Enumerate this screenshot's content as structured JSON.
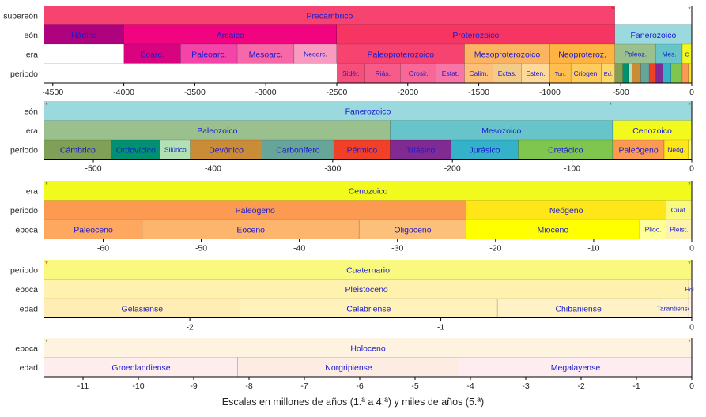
{
  "caption": "Escalas en millones de años (1.ª a 4.ª) y miles de años (5.ª)",
  "panels": [
    {
      "id": "precambrian-to-present",
      "range": [
        -4560,
        0
      ],
      "rows": [
        {
          "label": "supereón",
          "segments": [
            {
              "name": "Precámbrico",
              "start": -4560,
              "end": -541,
              "color": "#F74370"
            },
            {
              "name": "",
              "start": -541,
              "end": 0,
              "color": "#FFFFFF"
            }
          ]
        },
        {
          "label": "eón",
          "segments": [
            {
              "name": "Hádico",
              "start": -4560,
              "end": -4000,
              "color": "#AE027E"
            },
            {
              "name": "Arcaico",
              "start": -4000,
              "end": -2500,
              "color": "#F0047F"
            },
            {
              "name": "Proterozoico",
              "start": -2500,
              "end": -541,
              "color": "#F73563"
            },
            {
              "name": "Fanerozoico",
              "start": -541,
              "end": 0,
              "color": "#9AD9DD"
            }
          ]
        },
        {
          "label": "era",
          "segments": [
            {
              "name": "",
              "start": -4560,
              "end": -4000,
              "color": "#FFFFFF"
            },
            {
              "name": "Eoarc.",
              "start": -4000,
              "end": -3600,
              "color": "#DA037F"
            },
            {
              "name": "Paleoarc.",
              "start": -3600,
              "end": -3200,
              "color": "#F444A9"
            },
            {
              "name": "Mesoarc.",
              "start": -3200,
              "end": -2800,
              "color": "#F768A9"
            },
            {
              "name": "Neoarc.",
              "start": -2800,
              "end": -2500,
              "color": "#F99BC1"
            },
            {
              "name": "Paleoproterozoico",
              "start": -2500,
              "end": -1600,
              "color": "#F74370"
            },
            {
              "name": "Mesoproterozoico",
              "start": -1600,
              "end": -1000,
              "color": "#FDB462"
            },
            {
              "name": "Neoproteroz.",
              "start": -1000,
              "end": -541,
              "color": "#FEB342"
            },
            {
              "name": "Paleoz.",
              "start": -541,
              "end": -252,
              "color": "#99C08D"
            },
            {
              "name": "Mes.",
              "start": -252,
              "end": -66,
              "color": "#67C5CA"
            },
            {
              "name": "C",
              "start": -66,
              "end": 0,
              "color": "#F2F91D"
            }
          ]
        },
        {
          "label": "periodo",
          "segments": [
            {
              "name": "",
              "start": -4560,
              "end": -2500,
              "color": "#FFFFFF"
            },
            {
              "name": "Sidér.",
              "start": -2500,
              "end": -2300,
              "color": "#F74F7C"
            },
            {
              "name": "Riás.",
              "start": -2300,
              "end": -2050,
              "color": "#F75B89"
            },
            {
              "name": "Orosir.",
              "start": -2050,
              "end": -1800,
              "color": "#F76898"
            },
            {
              "name": "Estat.",
              "start": -1800,
              "end": -1600,
              "color": "#F875A7"
            },
            {
              "name": "Calim.",
              "start": -1600,
              "end": -1400,
              "color": "#FDC07A"
            },
            {
              "name": "Ectas.",
              "start": -1400,
              "end": -1200,
              "color": "#F3CC8A"
            },
            {
              "name": "Esten.",
              "start": -1200,
              "end": -1000,
              "color": "#FED99A"
            },
            {
              "name": "Ton.",
              "start": -1000,
              "end": -850,
              "color": "#FEBF4E"
            },
            {
              "name": "Criogen.",
              "start": -850,
              "end": -635,
              "color": "#FECC5C"
            },
            {
              "name": "Ed.",
              "start": -635,
              "end": -541,
              "color": "#FED96A"
            },
            {
              "name": "",
              "start": -541,
              "end": -485,
              "color": "#7FA056"
            },
            {
              "name": "",
              "start": -485,
              "end": -444,
              "color": "#009270"
            },
            {
              "name": "",
              "start": -444,
              "end": -419,
              "color": "#B3E1B6"
            },
            {
              "name": "",
              "start": -419,
              "end": -359,
              "color": "#CB8C37"
            },
            {
              "name": "",
              "start": -359,
              "end": -299,
              "color": "#67A599"
            },
            {
              "name": "",
              "start": -299,
              "end": -252,
              "color": "#F04028"
            },
            {
              "name": "",
              "start": -252,
              "end": -201,
              "color": "#812B92"
            },
            {
              "name": "",
              "start": -201,
              "end": -145,
              "color": "#34B2C9"
            },
            {
              "name": "",
              "start": -145,
              "end": -66,
              "color": "#7FC64E"
            },
            {
              "name": "",
              "start": -66,
              "end": -23,
              "color": "#FD9A52"
            },
            {
              "name": "",
              "start": -23,
              "end": 0,
              "color": "#FFE619"
            }
          ]
        }
      ],
      "ticks": [
        -4500,
        -4000,
        -3500,
        -3000,
        -2500,
        -2000,
        -1500,
        -1000,
        -500,
        0
      ],
      "markers": [
        {
          "at": -541,
          "color": "#d01010"
        },
        {
          "at": 0,
          "color": "#d01010"
        }
      ]
    },
    {
      "id": "phanerozoic",
      "range": [
        -541,
        0
      ],
      "rows": [
        {
          "label": "eón",
          "segments": [
            {
              "name": "Fanerozoico",
              "start": -541,
              "end": 0,
              "color": "#9AD9DD"
            }
          ]
        },
        {
          "label": "era",
          "segments": [
            {
              "name": "Paleozoico",
              "start": -541,
              "end": -252,
              "color": "#99C08D"
            },
            {
              "name": "Mesozoico",
              "start": -252,
              "end": -66,
              "color": "#67C5CA"
            },
            {
              "name": "Cenozoico",
              "start": -66,
              "end": 0,
              "color": "#F2F91D"
            }
          ]
        },
        {
          "label": "periodo",
          "segments": [
            {
              "name": "Cámbrico",
              "start": -541,
              "end": -485,
              "color": "#7FA056"
            },
            {
              "name": "Ordovícico",
              "start": -485,
              "end": -444,
              "color": "#009270"
            },
            {
              "name": "Silúrico",
              "start": -444,
              "end": -419,
              "color": "#B3E1B6"
            },
            {
              "name": "Devónico",
              "start": -419,
              "end": -359,
              "color": "#CB8C37"
            },
            {
              "name": "Carbonífero",
              "start": -359,
              "end": -299,
              "color": "#67A599"
            },
            {
              "name": "Pérmico",
              "start": -299,
              "end": -252,
              "color": "#F04028"
            },
            {
              "name": "Triásico",
              "start": -252,
              "end": -201,
              "color": "#812B92"
            },
            {
              "name": "Jurásico",
              "start": -201,
              "end": -145,
              "color": "#34B2C9"
            },
            {
              "name": "Cretácico",
              "start": -145,
              "end": -66,
              "color": "#7FC64E"
            },
            {
              "name": "Paleógeno",
              "start": -66,
              "end": -23,
              "color": "#FD9A52"
            },
            {
              "name": "Neóg.",
              "start": -23,
              "end": -2.6,
              "color": "#FFE619"
            },
            {
              "name": "",
              "start": -2.6,
              "end": 0,
              "color": "#F9F97F"
            }
          ]
        }
      ],
      "ticks": [
        -500,
        -400,
        -300,
        -200,
        -100,
        0
      ],
      "markers": [
        {
          "at": -541,
          "color": "#d01010"
        },
        {
          "at": -66,
          "color": "#3a7a1a"
        },
        {
          "at": 0,
          "color": "#3a7a1a"
        }
      ]
    },
    {
      "id": "cenozoic",
      "range": [
        -66,
        0
      ],
      "rows": [
        {
          "label": "era",
          "segments": [
            {
              "name": "Cenozoico",
              "start": -66,
              "end": 0,
              "color": "#F2F91D"
            }
          ]
        },
        {
          "label": "periodo",
          "segments": [
            {
              "name": "Paleógeno",
              "start": -66,
              "end": -23,
              "color": "#FD9A52"
            },
            {
              "name": "Neógeno",
              "start": -23,
              "end": -2.6,
              "color": "#FFE619"
            },
            {
              "name": "Cuat.",
              "start": -2.6,
              "end": 0,
              "color": "#F9F97F"
            }
          ]
        },
        {
          "label": "época",
          "segments": [
            {
              "name": "Paleoceno",
              "start": -66,
              "end": -56,
              "color": "#FDA75F"
            },
            {
              "name": "Eoceno",
              "start": -56,
              "end": -33.9,
              "color": "#FDB46C"
            },
            {
              "name": "Oligoceno",
              "start": -33.9,
              "end": -23,
              "color": "#FDC07A"
            },
            {
              "name": "Mioceno",
              "start": -23,
              "end": -5.3,
              "color": "#FFFF00"
            },
            {
              "name": "Plioc.",
              "start": -5.3,
              "end": -2.6,
              "color": "#FFFF99"
            },
            {
              "name": "Pleist.",
              "start": -2.6,
              "end": -0.0117,
              "color": "#FFF2AE"
            },
            {
              "name": "",
              "start": -0.0117,
              "end": 0,
              "color": "#FEF2E0"
            }
          ]
        }
      ],
      "ticks": [
        -60,
        -50,
        -40,
        -30,
        -20,
        -10,
        0
      ],
      "markers": [
        {
          "at": -66,
          "color": "#3a7a1a"
        },
        {
          "at": 0,
          "color": "#3a7a1a"
        }
      ]
    },
    {
      "id": "quaternary",
      "range": [
        -2.58,
        0
      ],
      "rows": [
        {
          "label": "periodo",
          "segments": [
            {
              "name": "Cuaternario",
              "start": -2.58,
              "end": 0,
              "color": "#F9F97F"
            }
          ]
        },
        {
          "label": "epoca",
          "segments": [
            {
              "name": "Pleistoceno",
              "start": -2.58,
              "end": -0.0117,
              "color": "#FFF2AE"
            },
            {
              "name": "Hol.",
              "start": -0.0117,
              "end": 0,
              "color": "#FEF2E0"
            }
          ]
        },
        {
          "label": "edad",
          "segments": [
            {
              "name": "Gelasiense",
              "start": -2.58,
              "end": -1.8,
              "color": "#FFEDB3"
            },
            {
              "name": "Calabriense",
              "start": -1.8,
              "end": -0.774,
              "color": "#FFF2BA"
            },
            {
              "name": "Chibaniense",
              "start": -0.774,
              "end": -0.129,
              "color": "#FFF2C7"
            },
            {
              "name": "Tarantiense",
              "start": -0.129,
              "end": -0.0117,
              "color": "#FFF2D3"
            },
            {
              "name": "",
              "start": -0.0117,
              "end": 0,
              "color": "#FEF2E0"
            }
          ]
        }
      ],
      "ticks": [
        -2,
        -1,
        0
      ],
      "markers": [
        {
          "at": -2.58,
          "color": "#d01010"
        },
        {
          "at": 0,
          "color": "#3a7a1a"
        }
      ]
    },
    {
      "id": "holocene",
      "range": [
        -11.7,
        0
      ],
      "rows": [
        {
          "label": "epoca",
          "segments": [
            {
              "name": "Holoceno",
              "start": -11.7,
              "end": 0,
              "color": "#FEF2E0"
            }
          ]
        },
        {
          "label": "edad",
          "segments": [
            {
              "name": "Groenlandiense",
              "start": -11.7,
              "end": -8.2,
              "color": "#FDEDEC"
            },
            {
              "name": "Norgripiense",
              "start": -8.2,
              "end": -4.2,
              "color": "#FDECE4"
            },
            {
              "name": "Megalayense",
              "start": -4.2,
              "end": 0,
              "color": "#FDEDF0"
            }
          ]
        }
      ],
      "ticks": [
        -11,
        -10,
        -9,
        -8,
        -7,
        -6,
        -5,
        -4,
        -3,
        -2,
        -1,
        0
      ],
      "markers": [
        {
          "at": -11.7,
          "color": "#3a7a1a"
        },
        {
          "at": 0,
          "color": "#3a7a1a"
        }
      ]
    }
  ]
}
